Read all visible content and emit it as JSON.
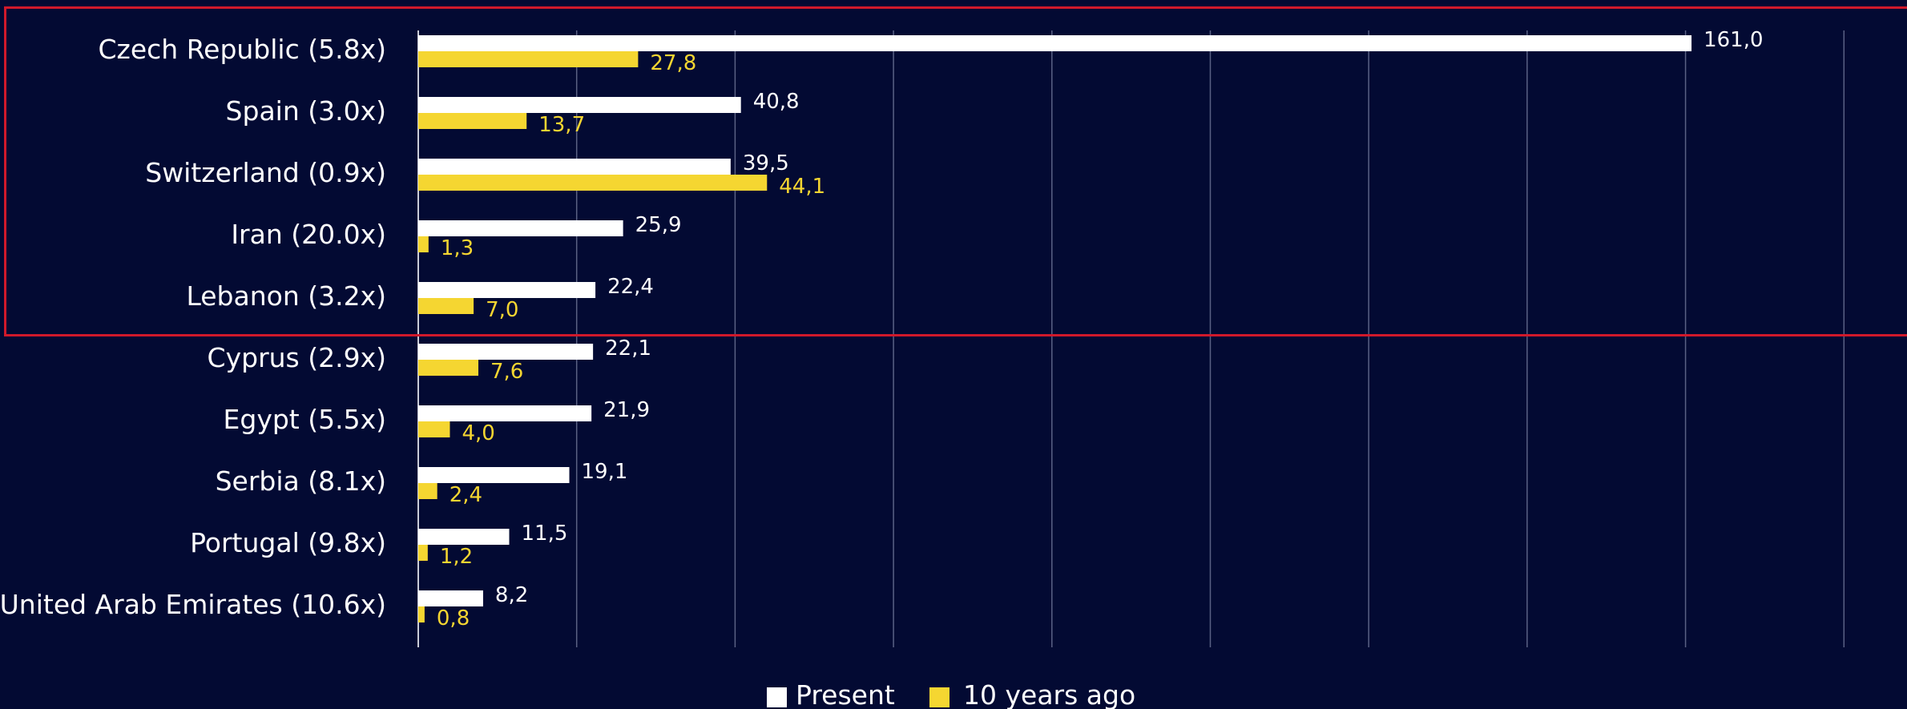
{
  "chart_data": {
    "type": "bar",
    "orientation": "horizontal",
    "categories": [
      "Czech Republic (5.8x)",
      "Spain (3.0x)",
      "Switzerland (0.9x)",
      "Iran (20.0x)",
      "Lebanon (3.2x)",
      "Cyprus (2.9x)",
      "Egypt (5.5x)",
      "Serbia (8.1x)",
      "Portugal (9.8x)",
      "United Arab Emirates (10.6x)"
    ],
    "series": [
      {
        "name": "Present",
        "color": "#ffffff",
        "values": [
          161.0,
          40.8,
          39.5,
          25.9,
          22.4,
          22.1,
          21.9,
          19.1,
          11.5,
          8.2
        ],
        "labels": [
          "161,0",
          "40,8",
          "39,5",
          "25,9",
          "22,4",
          "22,1",
          "21,9",
          "19,1",
          "11,5",
          "8,2"
        ]
      },
      {
        "name": "10 years ago",
        "color": "#f5d631",
        "values": [
          27.8,
          13.7,
          44.1,
          1.3,
          7.0,
          7.6,
          4.0,
          2.4,
          1.2,
          0.8
        ],
        "labels": [
          "27,8",
          "13,7",
          "44,1",
          "1,3",
          "7,0",
          "7,6",
          "4,0",
          "2,4",
          "1,2",
          "0,8"
        ]
      }
    ],
    "xlim": [
      0,
      180
    ],
    "grid": true,
    "legend_position": "bottom-center",
    "highlight": "top 5 categories outlined in red",
    "colors": {
      "background": "#030a33",
      "grid": "#5a6184",
      "highlight": "#d0192b"
    }
  }
}
